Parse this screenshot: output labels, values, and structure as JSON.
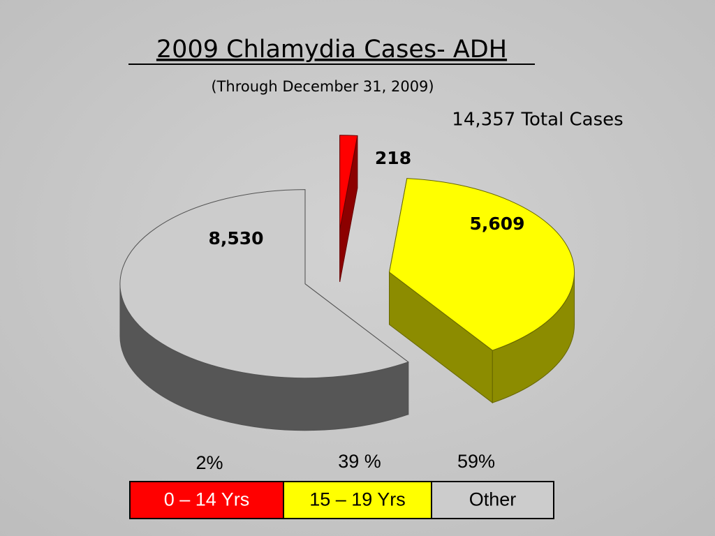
{
  "chart_data": {
    "type": "pie",
    "title": "2009 Chlamydia Cases- ADH",
    "subtitle": "(Through December 31, 2009)",
    "annotation": "14,357 Total Cases",
    "categories": [
      "0 – 14 Yrs",
      "15 – 19 Yrs",
      "Other"
    ],
    "values": [
      218,
      5609,
      8530
    ],
    "value_labels": [
      "218",
      "5,609",
      "8,530"
    ],
    "share_labels": [
      "2%",
      "39 %",
      "59%"
    ],
    "colors": [
      "#ff0000",
      "#ffff00",
      "#cccccc"
    ]
  }
}
